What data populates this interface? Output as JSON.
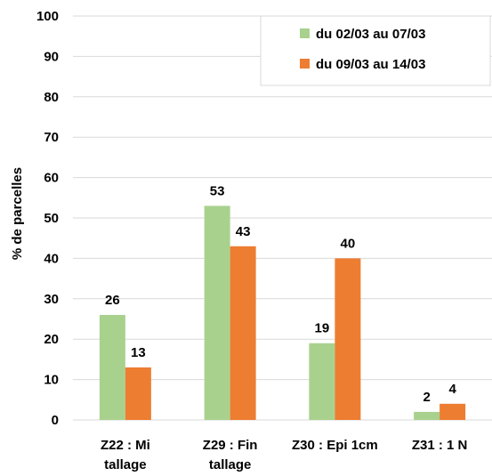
{
  "chart_data": {
    "type": "bar",
    "categories": [
      [
        "Z22 : Mi",
        "tallage"
      ],
      [
        "Z29 : Fin",
        "tallage"
      ],
      [
        "Z30 : Epi 1cm"
      ],
      [
        "Z31 : 1 N"
      ]
    ],
    "series": [
      {
        "name": "du 02/03 au 07/03",
        "color": "#a9d18e",
        "values": [
          26,
          53,
          19,
          2
        ]
      },
      {
        "name": "du 09/03 au 14/03",
        "color": "#ed7d31",
        "values": [
          13,
          43,
          40,
          4
        ]
      }
    ],
    "ylabel": "% de parcelles",
    "ylim": [
      0,
      100
    ],
    "yticks": [
      0,
      10,
      20,
      30,
      40,
      50,
      60,
      70,
      80,
      90,
      100
    ],
    "grid": true,
    "legend": "top-right"
  }
}
